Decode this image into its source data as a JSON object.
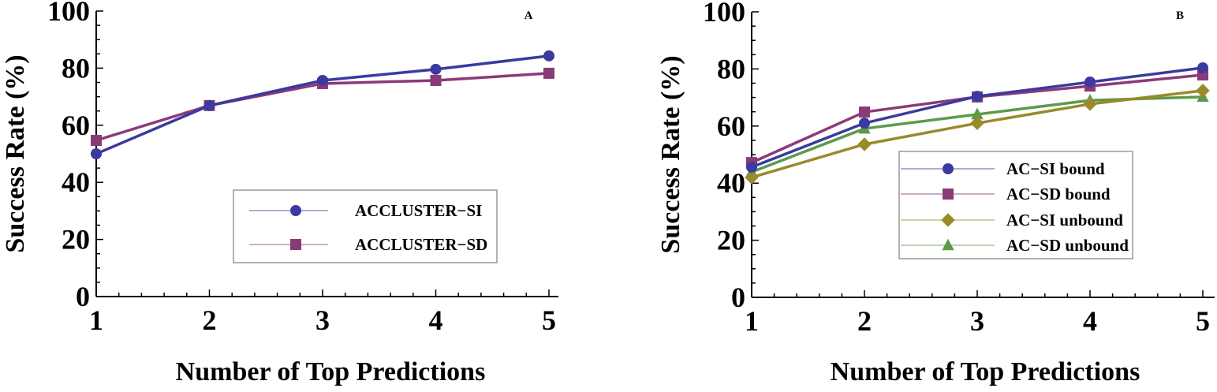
{
  "chart_data": [
    {
      "type": "line",
      "panel_label": "A",
      "title": "",
      "xlabel": "Number of Top Predictions",
      "ylabel": "Success Rate (%)",
      "x": [
        1,
        2,
        3,
        4,
        5
      ],
      "xlim": [
        1,
        5
      ],
      "ylim": [
        0,
        100
      ],
      "xticks": [
        "1",
        "2",
        "3",
        "4",
        "5"
      ],
      "yticks": [
        "0",
        "20",
        "40",
        "60",
        "80",
        "100"
      ],
      "grid": false,
      "legend_position": "bottom-right",
      "series": [
        {
          "name": "ACCLUSTER−SI",
          "marker": "circle",
          "color": "#3a3aa0",
          "values": [
            50.0,
            66.9,
            75.7,
            79.6,
            84.3
          ]
        },
        {
          "name": "ACCLUSTER−SD",
          "marker": "square",
          "color": "#8b3a78",
          "values": [
            54.7,
            66.9,
            74.6,
            75.7,
            78.2
          ]
        }
      ]
    },
    {
      "type": "line",
      "panel_label": "B",
      "title": "",
      "xlabel": "Number of Top Predictions",
      "ylabel": "Success Rate (%)",
      "x": [
        1,
        2,
        3,
        4,
        5
      ],
      "xlim": [
        1,
        5
      ],
      "ylim": [
        0,
        100
      ],
      "xticks": [
        "1",
        "2",
        "3",
        "4",
        "5"
      ],
      "yticks": [
        "0",
        "20",
        "40",
        "60",
        "80",
        "100"
      ],
      "grid": false,
      "legend_position": "bottom-right",
      "series": [
        {
          "name": "AC−SI bound",
          "marker": "circle",
          "color": "#3a3aa0",
          "values": [
            45.6,
            61.0,
            70.4,
            75.4,
            80.4
          ]
        },
        {
          "name": "AC−SD bound",
          "marker": "square",
          "color": "#8b3a78",
          "values": [
            47.2,
            64.9,
            70.2,
            74.0,
            77.9
          ]
        },
        {
          "name": "AC−SI unbound",
          "marker": "diamond",
          "color": "#9a8a2a",
          "values": [
            42.0,
            53.6,
            61.0,
            67.7,
            72.4
          ]
        },
        {
          "name": "AC−SD unbound",
          "marker": "triangle",
          "color": "#5c9a4a",
          "values": [
            43.9,
            59.1,
            64.1,
            69.0,
            70.2
          ]
        }
      ]
    }
  ]
}
